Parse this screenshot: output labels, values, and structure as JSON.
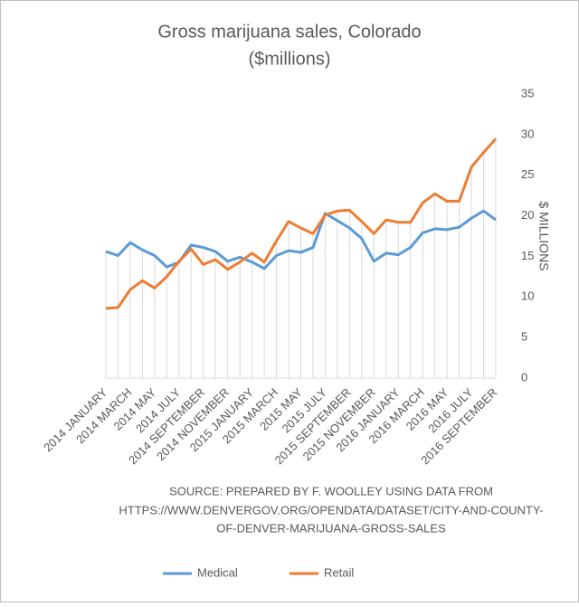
{
  "chart_data": {
    "type": "line",
    "title": [
      "Gross marijuana sales, Colorado",
      "($millions)"
    ],
    "y_axis_label": "$ MILLIONS",
    "source": [
      "SOURCE: PREPARED BY F. WOOLLEY USING DATA FROM",
      "HTTPS://WWW.DENVERGOV.ORG/OPENDATA/DATASET/CITY-AND-COUNTY-",
      "OF-DENVER-MARIJUANA-GROSS-SALES"
    ],
    "categories": [
      "2014 JANUARY",
      null,
      "2014 MARCH",
      null,
      "2014 MAY",
      null,
      "2014 JULY",
      null,
      "2014 SEPTEMBER",
      null,
      "2014 NOVEMBER",
      null,
      "2015 JANUARY",
      null,
      "2015 MARCH",
      null,
      "2015 MAY",
      null,
      "2015 JULY",
      null,
      "2015 SEPTEMBER",
      null,
      "2015 NOVEMBER",
      null,
      "2016 JANUARY",
      null,
      "2016 MARCH",
      null,
      "2016 MAY",
      null,
      "2016 JULY",
      null,
      "2016 SEPTEMBER"
    ],
    "series": [
      {
        "name": "Medical",
        "color": "#5b9bd5",
        "values": [
          15.6,
          15.1,
          16.7,
          15.8,
          15.1,
          13.7,
          14.3,
          16.4,
          16.1,
          15.6,
          14.4,
          14.9,
          14.3,
          13.5,
          15.1,
          15.7,
          15.5,
          16.1,
          20.3,
          19.4,
          18.5,
          17.2,
          14.4,
          15.4,
          15.2,
          16.1,
          17.9,
          18.4,
          18.3,
          18.6,
          19.7,
          20.6,
          19.5
        ]
      },
      {
        "name": "Retail",
        "color": "#ed7d31",
        "values": [
          8.6,
          8.7,
          10.9,
          12.0,
          11.1,
          12.5,
          14.4,
          15.9,
          14.0,
          14.6,
          13.4,
          14.3,
          15.4,
          14.3,
          16.9,
          19.3,
          18.5,
          17.8,
          20.1,
          20.6,
          20.7,
          19.3,
          17.8,
          19.5,
          19.2,
          19.2,
          21.6,
          22.7,
          21.8,
          21.8,
          26.0,
          27.8,
          29.5
        ]
      }
    ],
    "ylim": [
      0,
      35
    ],
    "yticks": [
      0,
      5,
      10,
      15,
      20,
      25,
      30,
      35
    ],
    "y_axis_side": "right",
    "drop_lines": true,
    "legend": "bottom"
  }
}
